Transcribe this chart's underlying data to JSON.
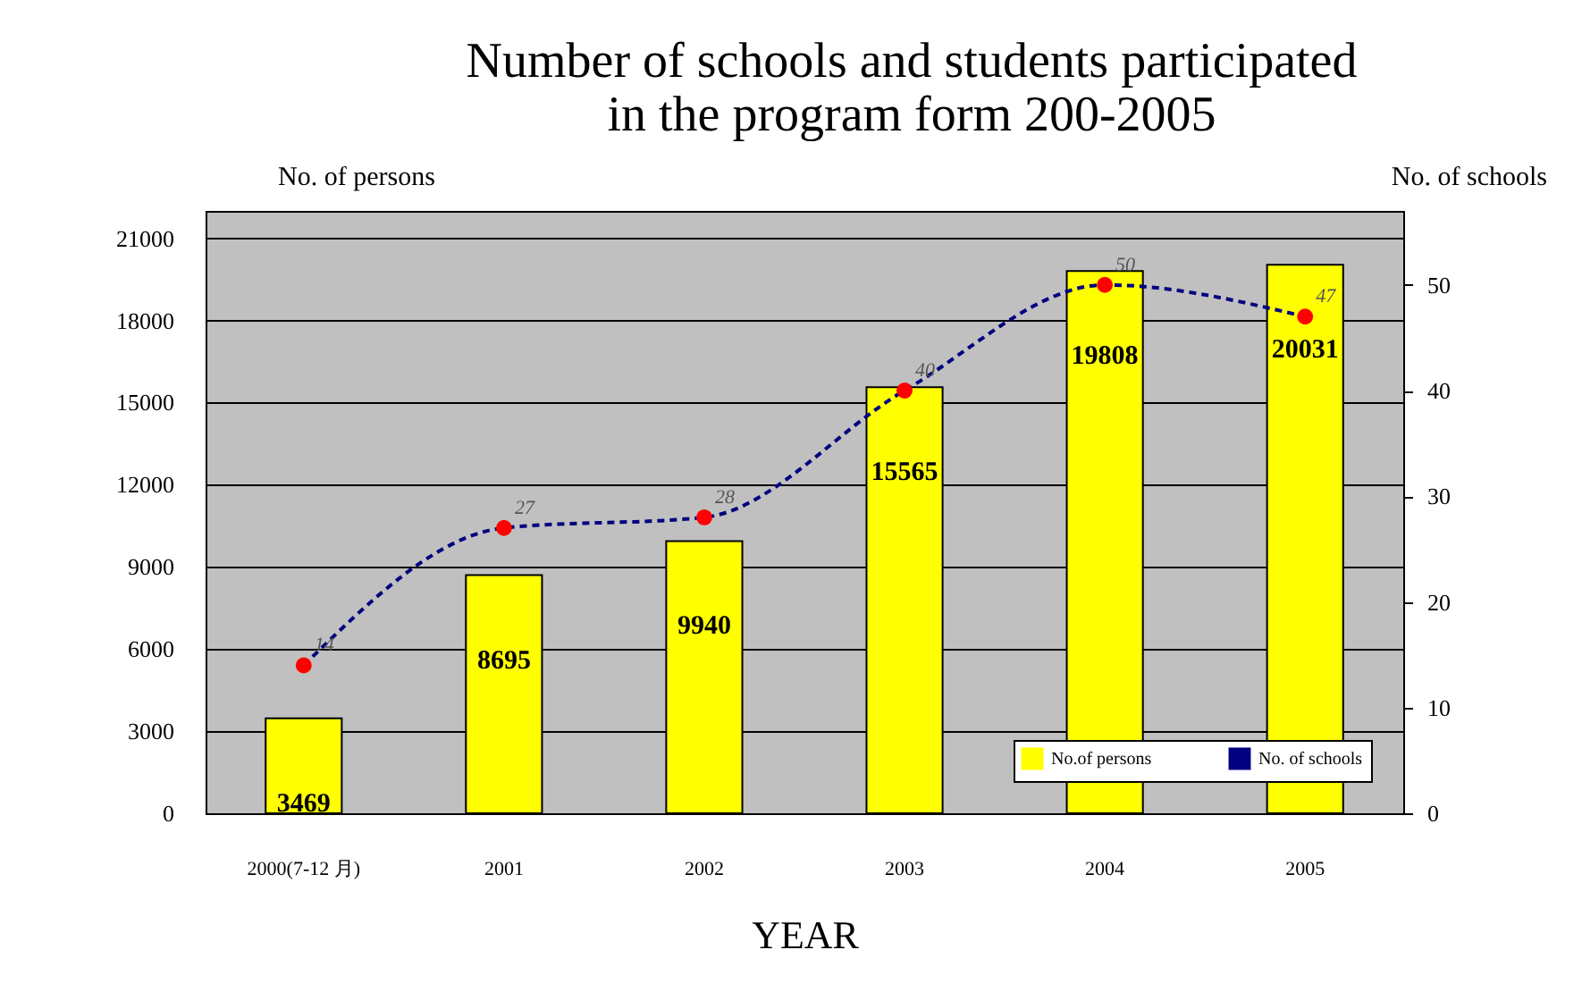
{
  "chart_data": {
    "type": "bar",
    "title": [
      "Number of schools and students participated",
      "in the program form 200-2005"
    ],
    "xlabel": "YEAR",
    "ylabel": "No. of persons",
    "y2label": "No. of schools",
    "categories": [
      "2000(7-12 月)",
      "2001",
      "2002",
      "2003",
      "2004",
      "2005"
    ],
    "series": [
      {
        "name": "No.of persons",
        "color": "#ffff00",
        "values": [
          3469,
          8695,
          9940,
          15565,
          19808,
          20031
        ]
      },
      {
        "name": "No. of schools",
        "type": "line",
        "axis": "y2",
        "color": "#000080",
        "colors": [
          "#ff0000",
          "#ff0000",
          "#ff0000",
          "#ff0000",
          "#ff0000",
          "#ff0000"
        ],
        "line_style": "dashed",
        "marker": "circle",
        "values": [
          14,
          27,
          28,
          40,
          50,
          47
        ]
      }
    ],
    "ylim": [
      0,
      22000
    ],
    "yticks": [
      0,
      3000,
      6000,
      9000,
      12000,
      15000,
      18000,
      21000
    ],
    "y2lim": [
      0,
      57
    ],
    "y2ticks": [
      0,
      10,
      20,
      30,
      40,
      50
    ],
    "grid": "y",
    "legend": "bottom right",
    "data_labels": true
  }
}
